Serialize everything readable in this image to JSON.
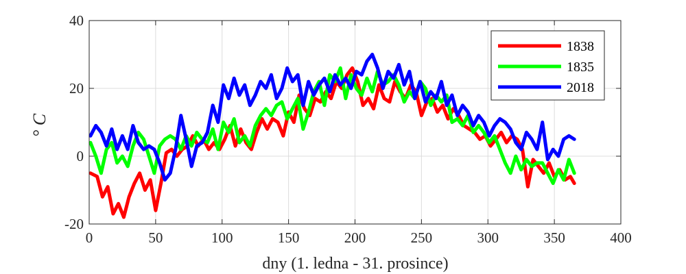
{
  "chart_data": {
    "type": "line",
    "xlabel": "dny (1. ledna - 31. prosince)",
    "ylabel": "° C",
    "xlim": [
      0,
      400
    ],
    "ylim": [
      -20,
      40
    ],
    "xticks": [
      "0",
      "50",
      "100",
      "150",
      "200",
      "250",
      "300",
      "350",
      "400"
    ],
    "yticks": [
      "-20",
      "0",
      "20",
      "40"
    ],
    "grid": true,
    "legend_position": "top-right",
    "series": [
      {
        "name": "1838",
        "color": "#ff0000",
        "points": [
          [
            1,
            -5
          ],
          [
            6,
            -6
          ],
          [
            10,
            -12
          ],
          [
            14,
            -9
          ],
          [
            18,
            -17
          ],
          [
            22,
            -14
          ],
          [
            26,
            -18
          ],
          [
            30,
            -12
          ],
          [
            34,
            -8
          ],
          [
            38,
            -5
          ],
          [
            42,
            -10
          ],
          [
            46,
            -7
          ],
          [
            50,
            -16
          ],
          [
            54,
            -8
          ],
          [
            58,
            1
          ],
          [
            62,
            2
          ],
          [
            66,
            0
          ],
          [
            70,
            2
          ],
          [
            74,
            3
          ],
          [
            78,
            6
          ],
          [
            82,
            3
          ],
          [
            86,
            5
          ],
          [
            90,
            2
          ],
          [
            94,
            4
          ],
          [
            98,
            2
          ],
          [
            102,
            5
          ],
          [
            106,
            9
          ],
          [
            110,
            3
          ],
          [
            114,
            8
          ],
          [
            118,
            4
          ],
          [
            122,
            2
          ],
          [
            126,
            7
          ],
          [
            130,
            11
          ],
          [
            134,
            8
          ],
          [
            138,
            11
          ],
          [
            142,
            10
          ],
          [
            146,
            6
          ],
          [
            150,
            13
          ],
          [
            154,
            10
          ],
          [
            158,
            18
          ],
          [
            162,
            14
          ],
          [
            166,
            12
          ],
          [
            170,
            17
          ],
          [
            174,
            16
          ],
          [
            178,
            19
          ],
          [
            182,
            17
          ],
          [
            186,
            22
          ],
          [
            190,
            20
          ],
          [
            194,
            24
          ],
          [
            198,
            26
          ],
          [
            202,
            22
          ],
          [
            206,
            15
          ],
          [
            210,
            17
          ],
          [
            214,
            14
          ],
          [
            218,
            21
          ],
          [
            222,
            17
          ],
          [
            226,
            16
          ],
          [
            230,
            22
          ],
          [
            234,
            19
          ],
          [
            238,
            17
          ],
          [
            242,
            21
          ],
          [
            246,
            19
          ],
          [
            250,
            12
          ],
          [
            254,
            16
          ],
          [
            258,
            17
          ],
          [
            262,
            13
          ],
          [
            266,
            15
          ],
          [
            270,
            11
          ],
          [
            274,
            14
          ],
          [
            278,
            12
          ],
          [
            282,
            9
          ],
          [
            286,
            8
          ],
          [
            290,
            7
          ],
          [
            294,
            5
          ],
          [
            298,
            6
          ],
          [
            302,
            3
          ],
          [
            306,
            5
          ],
          [
            310,
            7
          ],
          [
            314,
            4
          ],
          [
            318,
            6
          ],
          [
            322,
            5
          ],
          [
            326,
            2
          ],
          [
            330,
            -9
          ],
          [
            334,
            -1
          ],
          [
            338,
            -3
          ],
          [
            342,
            -5
          ],
          [
            346,
            -2
          ],
          [
            350,
            -6
          ],
          [
            354,
            -4
          ],
          [
            358,
            -7
          ],
          [
            362,
            -6
          ],
          [
            365,
            -8
          ]
        ]
      },
      {
        "name": "1835",
        "color": "#00ff00",
        "points": [
          [
            1,
            4
          ],
          [
            5,
            0
          ],
          [
            9,
            -5
          ],
          [
            13,
            2
          ],
          [
            17,
            4
          ],
          [
            21,
            -2
          ],
          [
            25,
            0
          ],
          [
            29,
            -3
          ],
          [
            33,
            3
          ],
          [
            37,
            7
          ],
          [
            41,
            5
          ],
          [
            45,
            0
          ],
          [
            49,
            -5
          ],
          [
            53,
            3
          ],
          [
            57,
            5
          ],
          [
            61,
            6
          ],
          [
            65,
            5
          ],
          [
            69,
            2
          ],
          [
            73,
            6
          ],
          [
            77,
            3
          ],
          [
            81,
            7
          ],
          [
            85,
            5
          ],
          [
            89,
            4
          ],
          [
            93,
            8
          ],
          [
            97,
            2
          ],
          [
            101,
            10
          ],
          [
            105,
            7
          ],
          [
            109,
            11
          ],
          [
            113,
            4
          ],
          [
            117,
            6
          ],
          [
            121,
            3
          ],
          [
            125,
            9
          ],
          [
            129,
            12
          ],
          [
            133,
            14
          ],
          [
            137,
            12
          ],
          [
            141,
            15
          ],
          [
            145,
            16
          ],
          [
            149,
            11
          ],
          [
            153,
            14
          ],
          [
            157,
            17
          ],
          [
            161,
            8
          ],
          [
            165,
            13
          ],
          [
            169,
            19
          ],
          [
            173,
            22
          ],
          [
            177,
            15
          ],
          [
            181,
            24
          ],
          [
            185,
            22
          ],
          [
            189,
            26
          ],
          [
            193,
            17
          ],
          [
            197,
            24
          ],
          [
            201,
            20
          ],
          [
            205,
            18
          ],
          [
            209,
            23
          ],
          [
            213,
            19
          ],
          [
            217,
            25
          ],
          [
            221,
            21
          ],
          [
            225,
            22
          ],
          [
            229,
            24
          ],
          [
            233,
            21
          ],
          [
            237,
            16
          ],
          [
            241,
            19
          ],
          [
            245,
            17
          ],
          [
            249,
            22
          ],
          [
            253,
            20
          ],
          [
            257,
            15
          ],
          [
            261,
            18
          ],
          [
            265,
            16
          ],
          [
            269,
            18
          ],
          [
            273,
            10
          ],
          [
            277,
            11
          ],
          [
            281,
            9
          ],
          [
            285,
            12
          ],
          [
            289,
            7
          ],
          [
            293,
            9
          ],
          [
            297,
            7
          ],
          [
            301,
            4
          ],
          [
            305,
            6
          ],
          [
            309,
            2
          ],
          [
            313,
            -2
          ],
          [
            317,
            -5
          ],
          [
            321,
            0
          ],
          [
            325,
            -4
          ],
          [
            329,
            -1
          ],
          [
            333,
            -3
          ],
          [
            337,
            -2
          ],
          [
            341,
            -2
          ],
          [
            345,
            -5
          ],
          [
            349,
            -8
          ],
          [
            353,
            -4
          ],
          [
            357,
            -7
          ],
          [
            361,
            -1
          ],
          [
            365,
            -5
          ]
        ]
      },
      {
        "name": "2018",
        "color": "#0000ff",
        "points": [
          [
            1,
            6
          ],
          [
            5,
            9
          ],
          [
            9,
            7
          ],
          [
            13,
            3
          ],
          [
            17,
            8
          ],
          [
            21,
            2
          ],
          [
            25,
            6
          ],
          [
            29,
            2
          ],
          [
            33,
            9
          ],
          [
            37,
            4
          ],
          [
            41,
            2
          ],
          [
            45,
            3
          ],
          [
            49,
            2
          ],
          [
            53,
            -2
          ],
          [
            57,
            -7
          ],
          [
            61,
            -5
          ],
          [
            65,
            2
          ],
          [
            69,
            12
          ],
          [
            73,
            5
          ],
          [
            77,
            -3
          ],
          [
            81,
            3
          ],
          [
            85,
            4
          ],
          [
            89,
            7
          ],
          [
            93,
            15
          ],
          [
            97,
            10
          ],
          [
            101,
            21
          ],
          [
            105,
            17
          ],
          [
            109,
            23
          ],
          [
            113,
            18
          ],
          [
            117,
            21
          ],
          [
            121,
            15
          ],
          [
            125,
            18
          ],
          [
            129,
            22
          ],
          [
            133,
            20
          ],
          [
            137,
            24
          ],
          [
            141,
            17
          ],
          [
            145,
            20
          ],
          [
            149,
            26
          ],
          [
            153,
            22
          ],
          [
            157,
            24
          ],
          [
            161,
            15
          ],
          [
            165,
            22
          ],
          [
            169,
            18
          ],
          [
            173,
            21
          ],
          [
            177,
            23
          ],
          [
            181,
            19
          ],
          [
            185,
            24
          ],
          [
            189,
            21
          ],
          [
            193,
            23
          ],
          [
            197,
            20
          ],
          [
            201,
            25
          ],
          [
            205,
            24
          ],
          [
            209,
            28
          ],
          [
            213,
            30
          ],
          [
            217,
            26
          ],
          [
            221,
            20
          ],
          [
            225,
            25
          ],
          [
            229,
            23
          ],
          [
            233,
            27
          ],
          [
            237,
            21
          ],
          [
            241,
            25
          ],
          [
            245,
            17
          ],
          [
            249,
            22
          ],
          [
            253,
            16
          ],
          [
            257,
            19
          ],
          [
            261,
            17
          ],
          [
            265,
            22
          ],
          [
            269,
            15
          ],
          [
            273,
            18
          ],
          [
            277,
            12
          ],
          [
            281,
            15
          ],
          [
            285,
            13
          ],
          [
            289,
            9
          ],
          [
            293,
            12
          ],
          [
            297,
            10
          ],
          [
            301,
            6
          ],
          [
            305,
            9
          ],
          [
            309,
            11
          ],
          [
            313,
            10
          ],
          [
            317,
            8
          ],
          [
            321,
            4
          ],
          [
            325,
            2
          ],
          [
            329,
            7
          ],
          [
            333,
            5
          ],
          [
            337,
            2
          ],
          [
            341,
            10
          ],
          [
            345,
            -1
          ],
          [
            349,
            2
          ],
          [
            353,
            0
          ],
          [
            357,
            5
          ],
          [
            361,
            6
          ],
          [
            365,
            5
          ]
        ]
      }
    ]
  }
}
